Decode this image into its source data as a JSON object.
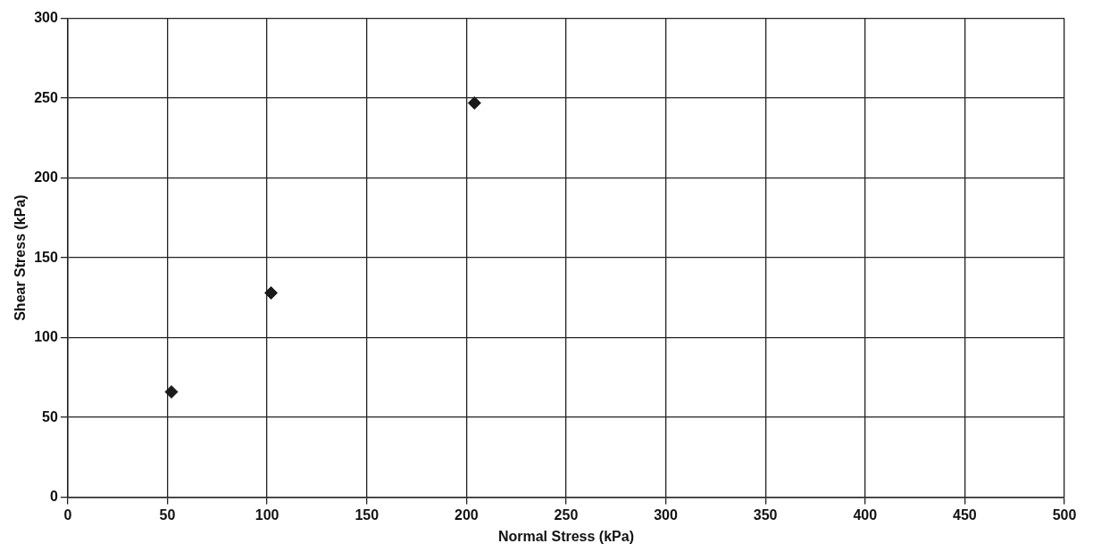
{
  "chart_data": {
    "type": "scatter",
    "xlabel": "Normal Stress (kPa)",
    "ylabel": "Shear Stress (kPa)",
    "series": [
      {
        "color": "#1a1a1a",
        "x": [
          52,
          102,
          204
        ],
        "values": [
          66,
          128,
          247
        ]
      }
    ],
    "xlim": [
      0,
      500
    ],
    "xticks": [
      0,
      50,
      100,
      150,
      200,
      250,
      300,
      350,
      400,
      450,
      500
    ],
    "ylim": [
      0,
      300
    ],
    "yticks": [
      0,
      50,
      100,
      150,
      200,
      250,
      300
    ],
    "grid": true,
    "marker": "diamond",
    "legend": false
  }
}
